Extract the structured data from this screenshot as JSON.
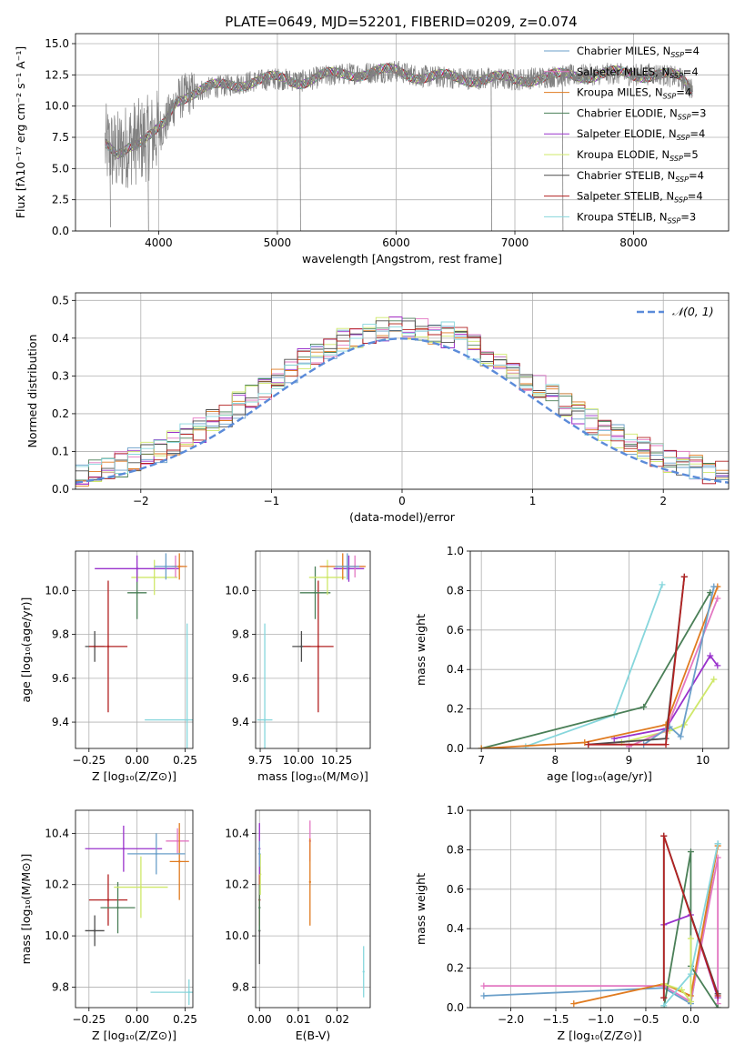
{
  "figure_title": "PLATE=0649, MJD=52201, FIBERID=0209, z=0.074",
  "legend_entries": [
    {
      "label": "Chabrier MILES, N",
      "sub": "SSP",
      "eq": "=4",
      "color": "#6a9fc9"
    },
    {
      "label": "Salpeter MILES, N",
      "sub": "SSP",
      "eq": "=4",
      "color": "#e377c2"
    },
    {
      "label": "Kroupa MILES, N",
      "sub": "SSP",
      "eq": "=4",
      "color": "#e07b20"
    },
    {
      "label": "Chabrier ELODIE, N",
      "sub": "SSP",
      "eq": "=3",
      "color": "#4a7f57"
    },
    {
      "label": "Salpeter ELODIE, N",
      "sub": "SSP",
      "eq": "=4",
      "color": "#9932cc"
    },
    {
      "label": "Kroupa ELODIE, N",
      "sub": "SSP",
      "eq": "=5",
      "color": "#cfe86a"
    },
    {
      "label": "Chabrier STELIB, N",
      "sub": "SSP",
      "eq": "=4",
      "color": "#4d4d4d"
    },
    {
      "label": "Salpeter STELIB, N",
      "sub": "SSP",
      "eq": "=4",
      "color": "#b22222"
    },
    {
      "label": "Kroupa STELIB, N",
      "sub": "SSP",
      "eq": "=3",
      "color": "#86d6dc"
    }
  ],
  "chart_data": [
    {
      "id": "spectrum",
      "type": "line",
      "xlabel": "wavelength [Angstrom, rest frame]",
      "ylabel": "Flux [fλ10⁻¹⁷ erg cm⁻² s⁻¹ A⁻¹]",
      "xlim": [
        3300,
        8800
      ],
      "ylim": [
        0,
        15.8
      ],
      "xticks": [
        4000,
        5000,
        6000,
        7000,
        8000
      ],
      "xtick_labels": [
        "4000",
        "5000",
        "6000",
        "7000",
        "8000"
      ],
      "yticks": [
        0,
        2.5,
        5,
        7.5,
        10,
        12.5,
        15
      ],
      "ytick_labels": [
        "0.0",
        "2.5",
        "5.0",
        "7.5",
        "10.0",
        "12.5",
        "15.0"
      ],
      "continuum": {
        "x": [
          3550,
          3650,
          3750,
          3850,
          3950,
          4050,
          4150,
          4250,
          4400,
          4600,
          4800,
          5000,
          5200,
          5400,
          5600,
          5800,
          6000,
          6200,
          6400,
          6600,
          6800,
          7000,
          7200,
          7400,
          7600,
          7800,
          8000,
          8200,
          8400,
          8500
        ],
        "y": [
          6.8,
          6.2,
          7.0,
          7.2,
          7.6,
          8.5,
          10.5,
          11.0,
          11.4,
          11.7,
          12.0,
          12.2,
          12.0,
          12.4,
          12.6,
          12.7,
          12.8,
          12.4,
          12.3,
          12.2,
          12.2,
          12.1,
          12.3,
          12.4,
          12.5,
          12.6,
          12.5,
          12.6,
          12.2,
          11.2
        ]
      },
      "series": [
        {
          "name": "data",
          "color": "#808080"
        },
        {
          "name": "model",
          "color": "#b22222"
        }
      ]
    },
    {
      "id": "residuals",
      "type": "line",
      "xlabel": "(data-model)/error",
      "ylabel": "Normed distribution",
      "xlim": [
        -2.5,
        2.5
      ],
      "ylim": [
        0,
        0.52
      ],
      "xticks": [
        -2,
        -1,
        0,
        1,
        2
      ],
      "xtick_labels": [
        "−2",
        "−1",
        "0",
        "1",
        "2"
      ],
      "yticks": [
        0,
        0.1,
        0.2,
        0.3,
        0.4,
        0.5
      ],
      "ytick_labels": [
        "0.0",
        "0.1",
        "0.2",
        "0.3",
        "0.4",
        "0.5"
      ],
      "gaussian_label": "𝒩(0, 1)",
      "gaussian_color": "#5b8bd9",
      "hist_bin_width": 0.1
    },
    {
      "id": "age_vs_Z",
      "type": "scatter",
      "xlabel": "Z [log₁₀(Z/Z⊙)]",
      "ylabel": "age  [log₁₀(age/yr)]",
      "xlim": [
        -0.32,
        0.29
      ],
      "ylim": [
        9.28,
        10.18
      ],
      "xticks": [
        -0.25,
        0.0,
        0.25
      ],
      "xtick_labels": [
        "−0.25",
        "0.00",
        "0.25"
      ],
      "yticks": [
        9.4,
        9.6,
        9.8,
        10.0
      ],
      "ytick_labels": [
        "9.4",
        "9.6",
        "9.8",
        "10.0"
      ],
      "points": [
        {
          "x": -0.22,
          "y": 9.745,
          "xerr": 0.05,
          "yerr": 0.07,
          "color": "#4d4d4d"
        },
        {
          "x": -0.15,
          "y": 9.745,
          "xerr": 0.1,
          "yerr": 0.3,
          "color": "#b22222"
        },
        {
          "x": 0.26,
          "y": 9.41,
          "xerr": 0.22,
          "yerr": 0.44,
          "color": "#86d6dc"
        },
        {
          "x": 0.0,
          "y": 9.99,
          "xerr": 0.05,
          "yerr": 0.12,
          "color": "#4a7f57"
        },
        {
          "x": 0.09,
          "y": 10.06,
          "xerr": 0.12,
          "yerr": 0.08,
          "color": "#cfe86a"
        },
        {
          "x": 0.0,
          "y": 10.1,
          "xerr": 0.22,
          "yerr": 0.06,
          "color": "#9932cc"
        },
        {
          "x": 0.2,
          "y": 10.11,
          "xerr": 0.04,
          "yerr": 0.05,
          "color": "#e377c2"
        },
        {
          "x": 0.22,
          "y": 10.11,
          "xerr": 0.04,
          "yerr": 0.06,
          "color": "#e07b20"
        },
        {
          "x": 0.15,
          "y": 10.11,
          "xerr": 0.06,
          "yerr": 0.06,
          "color": "#6a9fc9"
        }
      ]
    },
    {
      "id": "age_vs_mass",
      "type": "scatter",
      "xlabel": "mass [log₁₀(M/M⊙)]",
      "ylabel": "",
      "xlim": [
        9.72,
        10.47
      ],
      "ylim": [
        9.28,
        10.18
      ],
      "xticks": [
        9.75,
        10.0,
        10.25
      ],
      "xtick_labels": [
        "9.75",
        "10.00",
        "10.25"
      ],
      "yticks": [
        9.4,
        9.6,
        9.8,
        10.0
      ],
      "ytick_labels": [
        "9.4",
        "9.6",
        "9.8",
        "10.0"
      ],
      "points": [
        {
          "x": 10.02,
          "y": 9.745,
          "xerr": 0.06,
          "yerr": 0.07,
          "color": "#4d4d4d"
        },
        {
          "x": 10.13,
          "y": 9.745,
          "xerr": 0.1,
          "yerr": 0.3,
          "color": "#b22222"
        },
        {
          "x": 9.78,
          "y": 9.41,
          "xerr": 0.05,
          "yerr": 0.44,
          "color": "#86d6dc"
        },
        {
          "x": 10.11,
          "y": 9.99,
          "xerr": 0.1,
          "yerr": 0.12,
          "color": "#4a7f57"
        },
        {
          "x": 10.19,
          "y": 10.06,
          "xerr": 0.12,
          "yerr": 0.08,
          "color": "#cfe86a"
        },
        {
          "x": 10.33,
          "y": 10.1,
          "xerr": 0.1,
          "yerr": 0.06,
          "color": "#9932cc"
        },
        {
          "x": 10.37,
          "y": 10.11,
          "xerr": 0.06,
          "yerr": 0.05,
          "color": "#e377c2"
        },
        {
          "x": 10.29,
          "y": 10.11,
          "xerr": 0.15,
          "yerr": 0.06,
          "color": "#e07b20"
        },
        {
          "x": 10.32,
          "y": 10.11,
          "xerr": 0.08,
          "yerr": 0.06,
          "color": "#6a9fc9"
        }
      ]
    },
    {
      "id": "massweight_vs_age",
      "type": "line",
      "xlabel": "age  [log₁₀(age/yr)]",
      "ylabel": "mass weight",
      "xlim": [
        6.85,
        10.35
      ],
      "ylim": [
        0,
        1.0
      ],
      "xticks": [
        7,
        8,
        9,
        10
      ],
      "xtick_labels": [
        "7",
        "8",
        "9",
        "10"
      ],
      "yticks": [
        0,
        0.2,
        0.4,
        0.6,
        0.8,
        1.0
      ],
      "ytick_labels": [
        "0.0",
        "0.2",
        "0.4",
        "0.6",
        "0.8",
        "1.0"
      ],
      "series": [
        {
          "color": "#86d6dc",
          "x": [
            7.6,
            8.8,
            9.45
          ],
          "y": [
            0.01,
            0.17,
            0.83
          ]
        },
        {
          "color": "#4a7f57",
          "x": [
            7.0,
            9.2,
            10.1
          ],
          "y": [
            0.0,
            0.21,
            0.79
          ]
        },
        {
          "color": "#9932cc",
          "x": [
            8.8,
            9.5,
            10.1,
            10.2
          ],
          "y": [
            0.05,
            0.1,
            0.47,
            0.42
          ]
        },
        {
          "color": "#cfe86a",
          "x": [
            8.9,
            9.55,
            9.75,
            10.15
          ],
          "y": [
            0.03,
            0.09,
            0.12,
            0.35
          ]
        },
        {
          "color": "#e377c2",
          "x": [
            9.0,
            9.5,
            10.2
          ],
          "y": [
            0.01,
            0.09,
            0.76
          ]
        },
        {
          "color": "#e07b20",
          "x": [
            7.0,
            8.4,
            9.5,
            10.2
          ],
          "y": [
            0.0,
            0.03,
            0.12,
            0.82
          ]
        },
        {
          "color": "#6a9fc9",
          "x": [
            9.2,
            9.55,
            9.7,
            10.15
          ],
          "y": [
            0.02,
            0.11,
            0.06,
            0.82
          ]
        },
        {
          "color": "#4d4d4d",
          "x": [
            8.45,
            9.5,
            9.75
          ],
          "y": [
            0.02,
            0.05,
            0.87
          ]
        },
        {
          "color": "#b22222",
          "x": [
            8.45,
            9.5,
            9.75
          ],
          "y": [
            0.02,
            0.02,
            0.87
          ]
        }
      ]
    },
    {
      "id": "mass_vs_Z",
      "type": "scatter",
      "xlabel": "Z [log₁₀(Z/Z⊙)]",
      "ylabel": "mass [log₁₀(M/M⊙)]",
      "xlim": [
        -0.32,
        0.29
      ],
      "ylim": [
        9.72,
        10.49
      ],
      "xticks": [
        -0.25,
        0.0,
        0.25
      ],
      "xtick_labels": [
        "−0.25",
        "0.00",
        "0.25"
      ],
      "yticks": [
        9.8,
        10.0,
        10.2,
        10.4
      ],
      "ytick_labels": [
        "9.8",
        "10.0",
        "10.2",
        "10.4"
      ],
      "points": [
        {
          "x": -0.22,
          "y": 10.02,
          "xerr": 0.05,
          "yerr": 0.06,
          "color": "#4d4d4d"
        },
        {
          "x": -0.15,
          "y": 10.14,
          "xerr": 0.1,
          "yerr": 0.1,
          "color": "#b22222"
        },
        {
          "x": 0.27,
          "y": 9.78,
          "xerr": 0.2,
          "yerr": 0.05,
          "color": "#86d6dc"
        },
        {
          "x": -0.1,
          "y": 10.11,
          "xerr": 0.09,
          "yerr": 0.1,
          "color": "#4a7f57"
        },
        {
          "x": 0.02,
          "y": 10.19,
          "xerr": 0.14,
          "yerr": 0.12,
          "color": "#cfe86a"
        },
        {
          "x": -0.07,
          "y": 10.34,
          "xerr": 0.2,
          "yerr": 0.09,
          "color": "#9932cc"
        },
        {
          "x": 0.21,
          "y": 10.37,
          "xerr": 0.06,
          "yerr": 0.05,
          "color": "#e377c2"
        },
        {
          "x": 0.22,
          "y": 10.29,
          "xerr": 0.05,
          "yerr": 0.15,
          "color": "#e07b20"
        },
        {
          "x": 0.1,
          "y": 10.32,
          "xerr": 0.15,
          "yerr": 0.08,
          "color": "#6a9fc9"
        }
      ]
    },
    {
      "id": "mass_vs_EBV",
      "type": "scatter",
      "xlabel": "E(B-V)",
      "ylabel": "",
      "xlim": [
        -0.001,
        0.0285
      ],
      "ylim": [
        9.72,
        10.49
      ],
      "xticks": [
        0.0,
        0.01,
        0.02
      ],
      "xtick_labels": [
        "0.00",
        "0.01",
        "0.02"
      ],
      "yticks": [
        9.8,
        10.0,
        10.2,
        10.4
      ],
      "ytick_labels": [
        "9.8",
        "10.0",
        "10.2",
        "10.4"
      ],
      "points": [
        {
          "x": 0.0,
          "y": 10.02,
          "xerr": 0,
          "yerr": 0.13,
          "color": "#4d4d4d"
        },
        {
          "x": 0.0,
          "y": 10.14,
          "xerr": 0,
          "yerr": 0.1,
          "color": "#b22222"
        },
        {
          "x": 0.0268,
          "y": 9.86,
          "xerr": 0,
          "yerr": 0.1,
          "color": "#86d6dc"
        },
        {
          "x": 0.0,
          "y": 10.11,
          "xerr": 0,
          "yerr": 0.09,
          "color": "#4a7f57"
        },
        {
          "x": 0.0002,
          "y": 10.24,
          "xerr": 0,
          "yerr": 0.08,
          "color": "#cfe86a"
        },
        {
          "x": 0.0,
          "y": 10.34,
          "xerr": 0,
          "yerr": 0.1,
          "color": "#9932cc"
        },
        {
          "x": 0.013,
          "y": 10.37,
          "xerr": 0,
          "yerr": 0.08,
          "color": "#e377c2"
        },
        {
          "x": 0.013,
          "y": 10.21,
          "xerr": 0,
          "yerr": 0.17,
          "color": "#e07b20"
        },
        {
          "x": 0.0,
          "y": 10.32,
          "xerr": 0,
          "yerr": 0.05,
          "color": "#6a9fc9"
        }
      ]
    },
    {
      "id": "massweight_vs_Z",
      "type": "line",
      "xlabel": "Z [log₁₀(Z/Z⊙)]",
      "ylabel": "mass weight",
      "xlim": [
        -2.45,
        0.42
      ],
      "ylim": [
        0,
        1.0
      ],
      "xticks": [
        -2.0,
        -1.5,
        -1.0,
        -0.5,
        0.0
      ],
      "xtick_labels": [
        "−2.0",
        "−1.5",
        "−1.0",
        "−0.5",
        "0.0"
      ],
      "yticks": [
        0,
        0.2,
        0.4,
        0.6,
        0.8,
        1.0
      ],
      "ytick_labels": [
        "0.0",
        "0.2",
        "0.4",
        "0.6",
        "0.8",
        "1.0"
      ],
      "series": [
        {
          "color": "#6a9fc9",
          "x": [
            -2.3,
            -0.3,
            0.0,
            0.3
          ],
          "y": [
            0.06,
            0.1,
            0.02,
            0.83
          ]
        },
        {
          "color": "#e377c2",
          "x": [
            -2.3,
            -0.3,
            0.0,
            0.3,
            0.3
          ],
          "y": [
            0.11,
            0.11,
            0.03,
            0.76,
            0.02
          ]
        },
        {
          "color": "#e07b20",
          "x": [
            -1.3,
            -0.3,
            0.0,
            0.3
          ],
          "y": [
            0.02,
            0.12,
            0.06,
            0.82
          ]
        },
        {
          "color": "#4a7f57",
          "x": [
            -0.3,
            0.0,
            0.0,
            0.3
          ],
          "y": [
            0.0,
            0.79,
            0.21,
            0.0
          ]
        },
        {
          "color": "#9932cc",
          "x": [
            -0.3,
            0.0,
            0.3
          ],
          "y": [
            0.42,
            0.47,
            0.05
          ]
        },
        {
          "color": "#cfe86a",
          "x": [
            -0.3,
            -0.1,
            0.0,
            0.0
          ],
          "y": [
            0.12,
            0.09,
            0.03,
            0.35
          ]
        },
        {
          "color": "#86d6dc",
          "x": [
            -0.3,
            0.0,
            0.3
          ],
          "y": [
            0.01,
            0.17,
            0.83
          ]
        },
        {
          "color": "#4d4d4d",
          "x": [
            -0.3,
            -0.3,
            0.3
          ],
          "y": [
            0.05,
            0.87,
            0.07
          ]
        },
        {
          "color": "#b22222",
          "x": [
            -0.3,
            -0.3,
            0.3
          ],
          "y": [
            0.05,
            0.87,
            0.06
          ]
        }
      ]
    }
  ]
}
